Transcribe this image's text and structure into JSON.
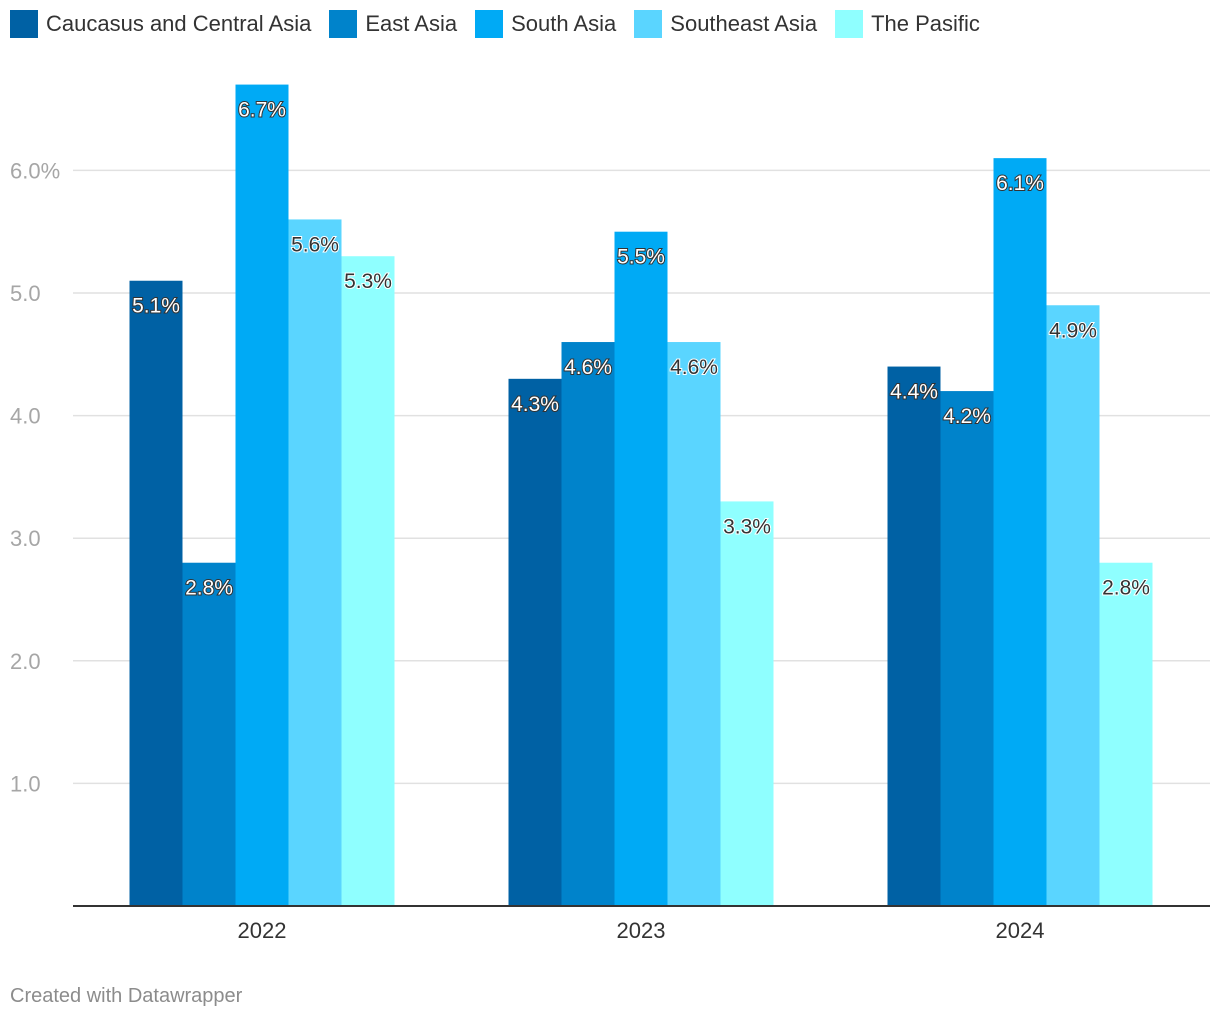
{
  "chart_data": {
    "type": "bar",
    "categories": [
      "2022",
      "2023",
      "2024"
    ],
    "series": [
      {
        "name": "Caucasus and Central Asia",
        "color": "#0061a4",
        "values": [
          5.1,
          4.3,
          4.4
        ],
        "labels": [
          "5.1%",
          "4.3%",
          "4.4%"
        ]
      },
      {
        "name": "East Asia",
        "color": "#0083cb",
        "values": [
          2.8,
          4.6,
          4.2
        ],
        "labels": [
          "2.8%",
          "4.6%",
          "4.2%"
        ]
      },
      {
        "name": "South Asia",
        "color": "#00aaf5",
        "values": [
          6.7,
          5.5,
          6.1
        ],
        "labels": [
          "6.7%",
          "5.5%",
          "6.1%"
        ]
      },
      {
        "name": "Southeast Asia",
        "color": "#5ad5ff",
        "values": [
          5.6,
          4.6,
          4.9
        ],
        "labels": [
          "5.6%",
          "4.6%",
          "4.9%"
        ]
      },
      {
        "name": "The Pasific",
        "color": "#8fffff",
        "values": [
          5.3,
          3.3,
          2.8
        ],
        "labels": [
          "5.3%",
          "3.3%",
          "2.8%"
        ]
      }
    ],
    "y_ticks": [
      1,
      2,
      3,
      4,
      5,
      6
    ],
    "y_tick_labels": [
      "1.0",
      "2.0",
      "3.0",
      "4.0",
      "5.0",
      "6.0%"
    ],
    "ylim": [
      0,
      7
    ],
    "legend_position": "top-left",
    "grid": true
  },
  "footer": "Created with Datawrapper"
}
